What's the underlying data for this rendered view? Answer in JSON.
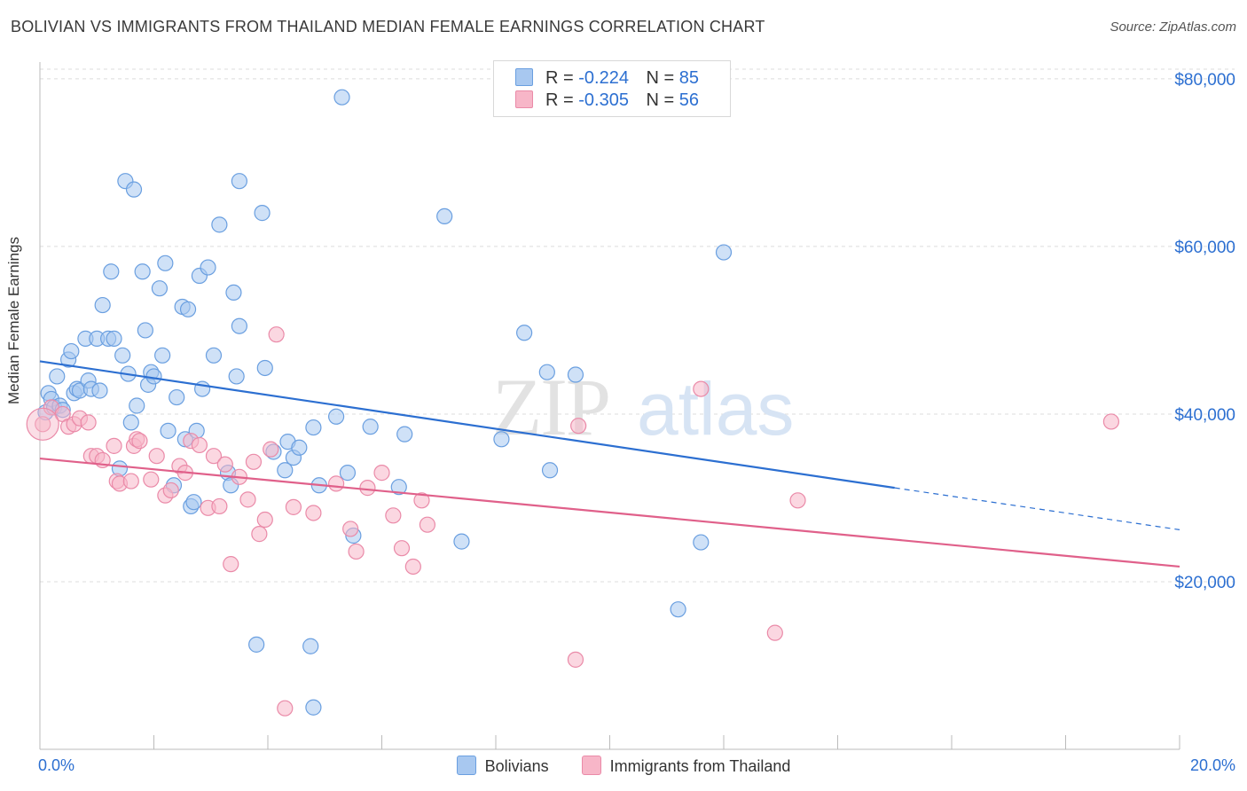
{
  "header": {
    "title": "BOLIVIAN VS IMMIGRANTS FROM THAILAND MEDIAN FEMALE EARNINGS CORRELATION CHART",
    "source": "Source: ZipAtlas.com"
  },
  "watermark": {
    "zip": "ZIP",
    "atlas": "atlas"
  },
  "legend_top": {
    "rows": [
      {
        "r_label": "R =",
        "r_value": "-0.224",
        "n_label": "N =",
        "n_value": "85",
        "color": "#a8c8f0"
      },
      {
        "r_label": "R =",
        "r_value": "-0.305",
        "n_label": "N =",
        "n_value": "56",
        "color": "#f7b6c8"
      }
    ]
  },
  "legend_bottom": {
    "items": [
      {
        "label": "Bolivians",
        "color": "#a8c8f0"
      },
      {
        "label": "Immigrants from Thailand",
        "color": "#f7b6c8"
      }
    ]
  },
  "chart_data": {
    "type": "scatter",
    "title": "BOLIVIAN VS IMMIGRANTS FROM THAILAND MEDIAN FEMALE EARNINGS CORRELATION CHART",
    "xlabel": "",
    "ylabel": "Median Female Earnings",
    "xlim": [
      0,
      20
    ],
    "ylim": [
      0,
      82000
    ],
    "x_tick_labels": [
      "0.0%",
      "20.0%"
    ],
    "y_ticks": [
      20000,
      40000,
      60000,
      80000
    ],
    "y_tick_labels": [
      "$20,000",
      "$40,000",
      "$60,000",
      "$80,000"
    ],
    "grid": true,
    "legend_position": "top-center",
    "series": [
      {
        "name": "Bolivians",
        "color": "#a8c8f0",
        "stroke": "#6a9fe0",
        "line_color": "#2c6fd1",
        "trend": {
          "x0": 0,
          "y0": 46300,
          "x1": 15.0,
          "y1": 31200,
          "dash_to": 20.0,
          "dash_y": 26200
        },
        "points": [
          [
            0.1,
            40200
          ],
          [
            0.15,
            42500
          ],
          [
            0.2,
            41800
          ],
          [
            0.25,
            40800
          ],
          [
            0.3,
            44500
          ],
          [
            0.35,
            41000
          ],
          [
            0.4,
            40500
          ],
          [
            0.5,
            46500
          ],
          [
            0.55,
            47500
          ],
          [
            0.6,
            42500
          ],
          [
            0.65,
            43000
          ],
          [
            0.7,
            42800
          ],
          [
            0.8,
            49000
          ],
          [
            0.85,
            44000
          ],
          [
            0.9,
            43000
          ],
          [
            1.0,
            49000
          ],
          [
            1.05,
            42800
          ],
          [
            1.1,
            53000
          ],
          [
            1.2,
            49000
          ],
          [
            1.25,
            57000
          ],
          [
            1.3,
            49000
          ],
          [
            1.4,
            33500
          ],
          [
            1.45,
            47000
          ],
          [
            1.5,
            67800
          ],
          [
            1.55,
            44800
          ],
          [
            1.6,
            39000
          ],
          [
            1.65,
            66800
          ],
          [
            1.7,
            41000
          ],
          [
            1.8,
            57000
          ],
          [
            1.85,
            50000
          ],
          [
            1.9,
            43500
          ],
          [
            1.95,
            45000
          ],
          [
            2.0,
            44500
          ],
          [
            2.1,
            55000
          ],
          [
            2.15,
            47000
          ],
          [
            2.2,
            58000
          ],
          [
            2.25,
            38000
          ],
          [
            2.35,
            31500
          ],
          [
            2.4,
            42000
          ],
          [
            2.5,
            52800
          ],
          [
            2.55,
            37000
          ],
          [
            2.6,
            52500
          ],
          [
            2.65,
            29000
          ],
          [
            2.7,
            29500
          ],
          [
            2.75,
            38000
          ],
          [
            2.8,
            56500
          ],
          [
            2.85,
            43000
          ],
          [
            2.95,
            57500
          ],
          [
            3.05,
            47000
          ],
          [
            3.15,
            62600
          ],
          [
            3.3,
            33000
          ],
          [
            3.35,
            31500
          ],
          [
            3.4,
            54500
          ],
          [
            3.45,
            44500
          ],
          [
            3.5,
            50500
          ],
          [
            3.5,
            67800
          ],
          [
            3.8,
            12500
          ],
          [
            3.9,
            64000
          ],
          [
            3.95,
            45500
          ],
          [
            4.1,
            35500
          ],
          [
            4.3,
            33300
          ],
          [
            4.35,
            36700
          ],
          [
            4.45,
            34800
          ],
          [
            4.55,
            36000
          ],
          [
            4.75,
            12300
          ],
          [
            4.8,
            38400
          ],
          [
            4.9,
            31500
          ],
          [
            5.2,
            39700
          ],
          [
            5.3,
            77800
          ],
          [
            5.5,
            25500
          ],
          [
            5.8,
            38500
          ],
          [
            6.3,
            31300
          ],
          [
            6.4,
            37600
          ],
          [
            7.1,
            63600
          ],
          [
            7.4,
            24800
          ],
          [
            8.1,
            37000
          ],
          [
            8.5,
            49700
          ],
          [
            8.9,
            45000
          ],
          [
            8.95,
            33300
          ],
          [
            9.4,
            44700
          ],
          [
            11.2,
            16700
          ],
          [
            11.6,
            24700
          ],
          [
            12.0,
            59300
          ],
          [
            4.8,
            5000
          ],
          [
            5.4,
            33000
          ]
        ]
      },
      {
        "name": "Immigrants from Thailand",
        "color": "#f7b6c8",
        "stroke": "#ea8aa8",
        "line_color": "#e0608a",
        "trend": {
          "x0": 0,
          "y0": 34700,
          "x1": 20.0,
          "y1": 21800
        },
        "points": [
          [
            0.05,
            38800
          ],
          [
            0.2,
            40800
          ],
          [
            0.4,
            40000
          ],
          [
            0.5,
            38500
          ],
          [
            0.6,
            38800
          ],
          [
            0.7,
            39500
          ],
          [
            0.85,
            39000
          ],
          [
            0.9,
            35000
          ],
          [
            1.0,
            35000
          ],
          [
            1.1,
            34500
          ],
          [
            1.3,
            36200
          ],
          [
            1.35,
            32000
          ],
          [
            1.4,
            31700
          ],
          [
            1.6,
            32000
          ],
          [
            1.65,
            36200
          ],
          [
            1.7,
            37000
          ],
          [
            1.75,
            36800
          ],
          [
            1.95,
            32200
          ],
          [
            2.05,
            35000
          ],
          [
            2.2,
            30300
          ],
          [
            2.3,
            30900
          ],
          [
            2.45,
            33800
          ],
          [
            2.55,
            33000
          ],
          [
            2.65,
            36800
          ],
          [
            2.8,
            36300
          ],
          [
            2.95,
            28800
          ],
          [
            3.05,
            35000
          ],
          [
            3.15,
            29000
          ],
          [
            3.25,
            34000
          ],
          [
            3.35,
            22100
          ],
          [
            3.5,
            32500
          ],
          [
            3.65,
            29800
          ],
          [
            3.75,
            34300
          ],
          [
            3.85,
            25700
          ],
          [
            3.95,
            27400
          ],
          [
            4.05,
            35800
          ],
          [
            4.15,
            49500
          ],
          [
            4.3,
            4900
          ],
          [
            4.45,
            28900
          ],
          [
            4.8,
            28200
          ],
          [
            5.2,
            31700
          ],
          [
            5.45,
            26300
          ],
          [
            5.55,
            23600
          ],
          [
            5.75,
            31200
          ],
          [
            6.0,
            33000
          ],
          [
            6.2,
            27900
          ],
          [
            6.35,
            24000
          ],
          [
            6.55,
            21800
          ],
          [
            6.7,
            29700
          ],
          [
            6.8,
            26800
          ],
          [
            9.45,
            38600
          ],
          [
            9.4,
            10700
          ],
          [
            11.6,
            43000
          ],
          [
            12.9,
            13900
          ],
          [
            13.3,
            29700
          ],
          [
            18.8,
            39100
          ]
        ]
      }
    ]
  }
}
